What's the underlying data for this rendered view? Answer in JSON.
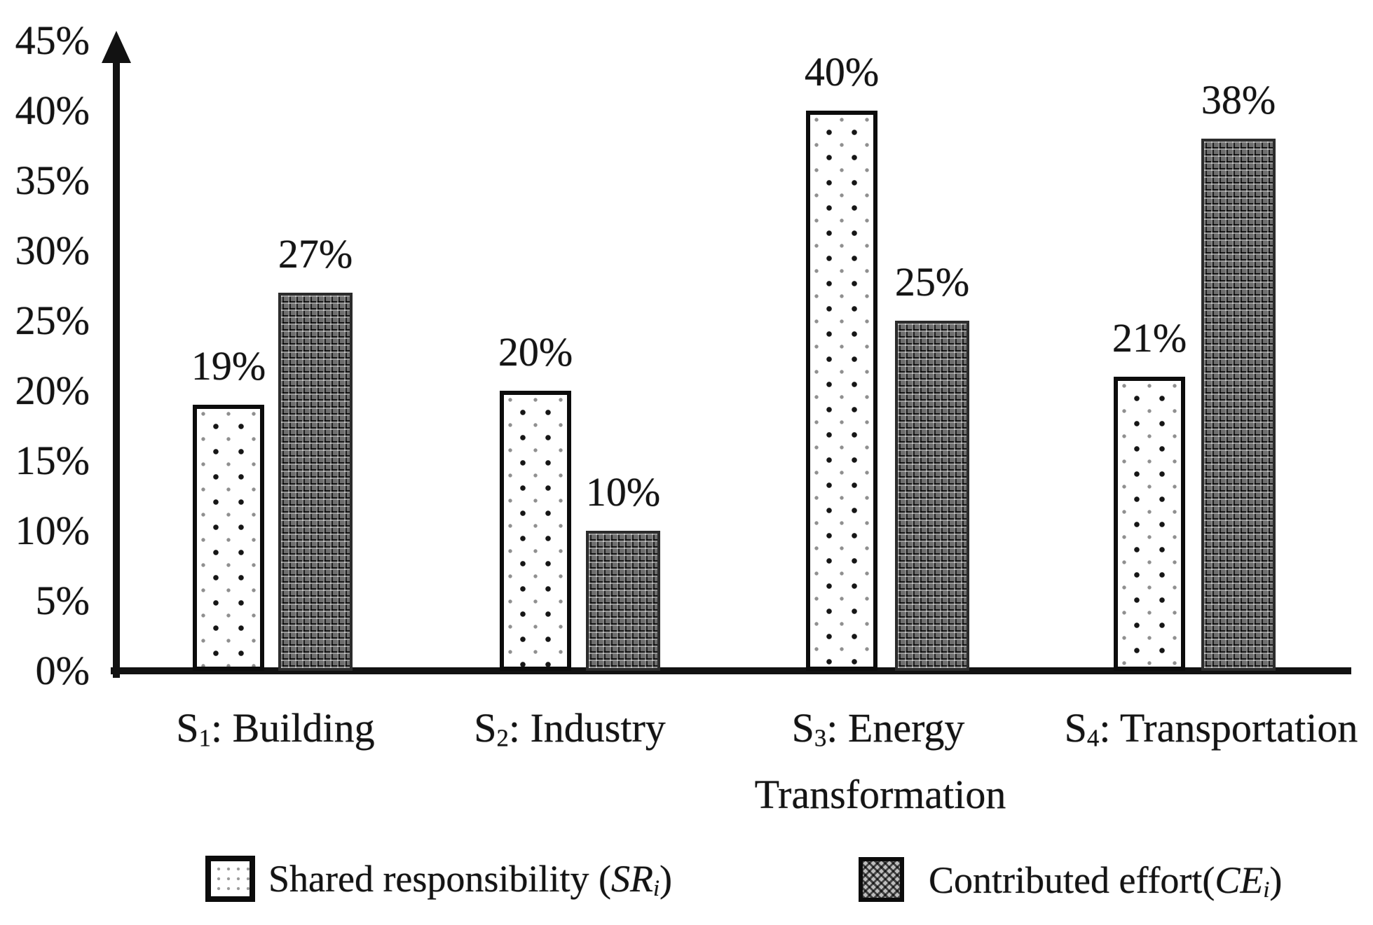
{
  "chart_data": {
    "type": "bar",
    "title": "",
    "xlabel": "",
    "ylabel": "",
    "categories": [
      "S1: Building",
      "S2: Industry",
      "S3: Energy Transformation",
      "S4: Transportation"
    ],
    "category_parts": [
      {
        "symbol": "S",
        "sub": "1",
        "rest": ": Building",
        "line2": ""
      },
      {
        "symbol": "S",
        "sub": "2",
        "rest": ": Industry",
        "line2": ""
      },
      {
        "symbol": "S",
        "sub": "3",
        "rest": ": Energy",
        "line2": "Transformation"
      },
      {
        "symbol": "S",
        "sub": "4",
        "rest": ": Transportation",
        "line2": ""
      }
    ],
    "series": [
      {
        "name": "Shared responsibility (SRi)",
        "key": "sr",
        "values": [
          19,
          20,
          40,
          21
        ]
      },
      {
        "name": "Contributed effort (CEi)",
        "key": "ce",
        "values": [
          27,
          10,
          25,
          38
        ]
      }
    ],
    "value_labels": {
      "sr": [
        "19%",
        "20%",
        "40%",
        "21%"
      ],
      "ce": [
        "27%",
        "10%",
        "25%",
        "38%"
      ]
    },
    "y_axis": {
      "min": 0,
      "max": 45,
      "step": 5,
      "ticks": [
        "0%",
        "5%",
        "10%",
        "15%",
        "20%",
        "25%",
        "30%",
        "35%",
        "40%",
        "45%"
      ]
    },
    "grid": "off",
    "legend_position": "bottom",
    "colors": {
      "axis": "#121212",
      "text": "#141414",
      "sr_fill": "#ffffff",
      "sr_dot": "#161616",
      "ce_fill": "#6e6e6e",
      "background": "#ffffff"
    }
  },
  "legend": [
    {
      "pattern": "dots",
      "text_before": "Shared responsibility (",
      "em": "SR",
      "sub": "i",
      "text_after": ")"
    },
    {
      "pattern": "weave",
      "text_before": "Contributed effort(",
      "em": "CE",
      "sub": "i",
      "text_after": ")"
    }
  ]
}
